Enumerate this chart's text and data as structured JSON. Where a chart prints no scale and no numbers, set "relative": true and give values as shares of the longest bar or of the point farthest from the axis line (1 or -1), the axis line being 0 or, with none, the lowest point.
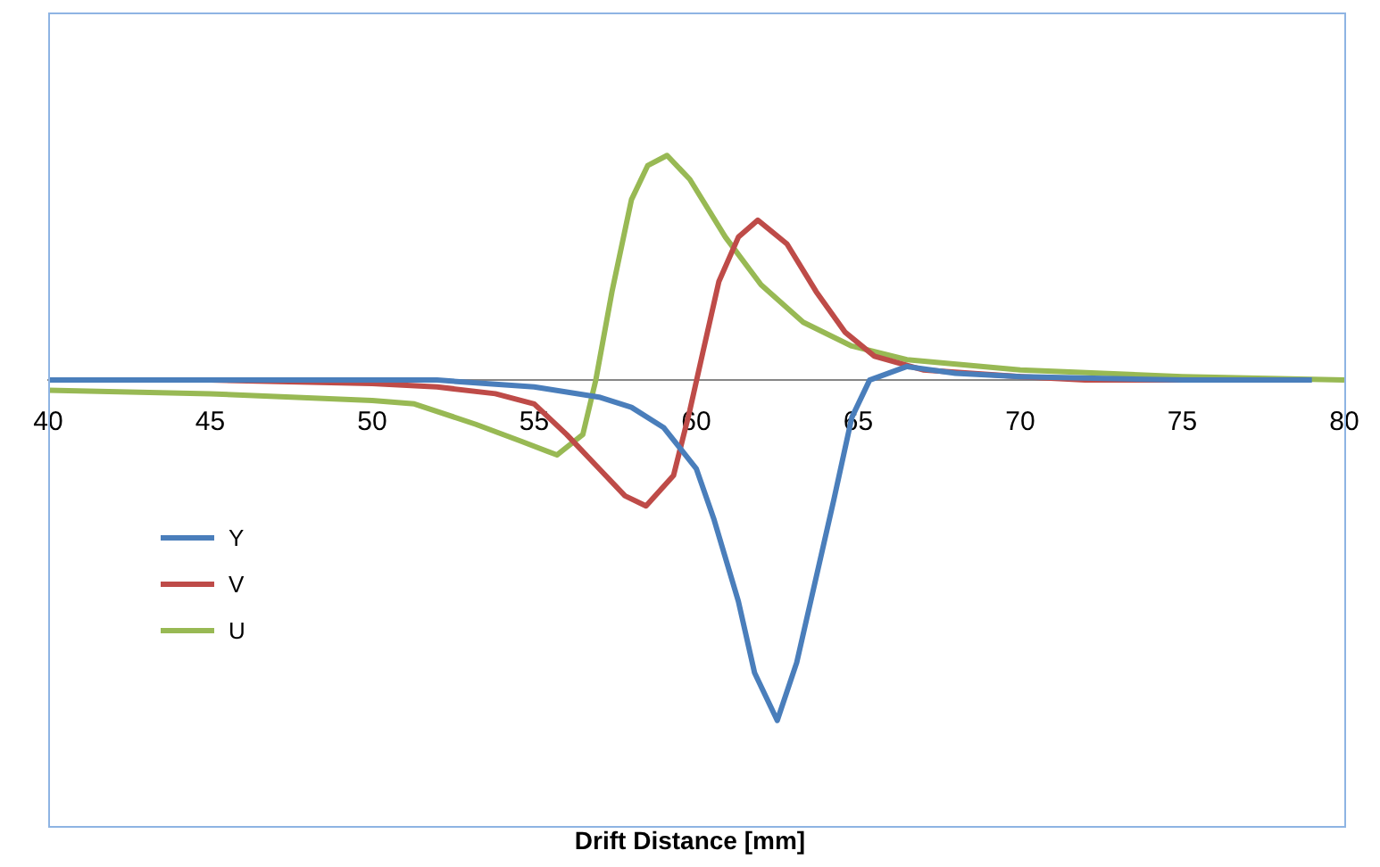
{
  "chart_data": {
    "type": "line",
    "xlabel": "Drift Distance [mm]",
    "relative": true,
    "legend": "left",
    "marker": "none",
    "grid": false,
    "xlim": [
      40,
      80
    ],
    "xticks": [
      40,
      45,
      50,
      55,
      60,
      65,
      70,
      75,
      80
    ],
    "series": [
      {
        "name": "Y",
        "color": "#4a7ebb",
        "x": [
          40,
          45,
          50,
          52,
          55,
          57,
          58,
          59,
          60,
          60.55,
          61.3,
          61.8,
          62.5,
          63.1,
          63.7,
          64.25,
          64.8,
          65.35,
          66.5,
          68,
          70,
          75,
          79
        ],
        "values": [
          0,
          0,
          0,
          0,
          -0.02,
          -0.05,
          -0.08,
          -0.14,
          -0.26,
          -0.41,
          -0.65,
          -0.86,
          -1,
          -0.83,
          -0.58,
          -0.35,
          -0.11,
          0,
          0.04,
          0.02,
          0.01,
          0,
          0
        ]
      },
      {
        "name": "V",
        "color": "#be4b48",
        "x": [
          40,
          45,
          50,
          52,
          53.8,
          55,
          56,
          56.9,
          57.8,
          58.45,
          59.3,
          59.8,
          60.2,
          60.7,
          61.3,
          61.9,
          62.8,
          63.7,
          64.6,
          65.5,
          67,
          70,
          72,
          78.7
        ],
        "values": [
          0,
          0,
          -0.01,
          -0.02,
          -0.04,
          -0.07,
          -0.16,
          -0.25,
          -0.34,
          -0.37,
          -0.28,
          -0.09,
          0.08,
          0.29,
          0.42,
          0.47,
          0.4,
          0.26,
          0.14,
          0.07,
          0.03,
          0.01,
          0,
          0
        ]
      },
      {
        "name": "U",
        "color": "#98b954",
        "x": [
          40,
          45,
          50,
          51.3,
          53.2,
          54.6,
          55.7,
          56.5,
          56.9,
          57.4,
          58,
          58.5,
          59.1,
          59.8,
          60.9,
          62,
          63.3,
          64.8,
          66.5,
          70,
          75,
          80
        ],
        "values": [
          -0.03,
          -0.04,
          -0.06,
          -0.07,
          -0.13,
          -0.18,
          -0.22,
          -0.16,
          0,
          0.26,
          0.53,
          0.63,
          0.66,
          0.59,
          0.42,
          0.28,
          0.17,
          0.1,
          0.06,
          0.03,
          0.01,
          0
        ]
      }
    ]
  }
}
